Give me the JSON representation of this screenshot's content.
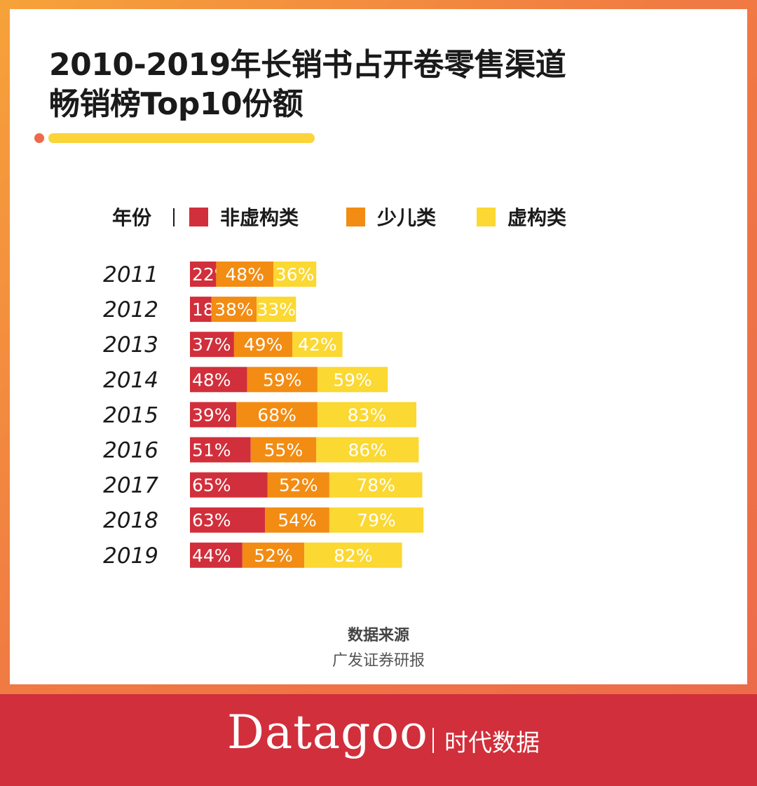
{
  "title": {
    "line1": "2010-2019年长销书占开卷零售渠道",
    "line2": "畅销榜Top10份额"
  },
  "legend": {
    "year_label": "年份",
    "items": [
      {
        "label": "非虚构类",
        "color": "#d12f3b"
      },
      {
        "label": "少儿类",
        "color": "#f28c13"
      },
      {
        "label": "虚构类",
        "color": "#fbd832"
      }
    ]
  },
  "chart_data": {
    "type": "bar",
    "orientation": "horizontal",
    "stacked": true,
    "categories": [
      "2011",
      "2012",
      "2013",
      "2014",
      "2015",
      "2016",
      "2017",
      "2018",
      "2019"
    ],
    "series": [
      {
        "name": "非虚构类",
        "color": "#d12f3b",
        "values": [
          22,
          18,
          37,
          48,
          39,
          51,
          65,
          63,
          44
        ]
      },
      {
        "name": "少儿类",
        "color": "#f28c13",
        "values": [
          48,
          38,
          49,
          59,
          68,
          55,
          52,
          54,
          52
        ]
      },
      {
        "name": "虚构类",
        "color": "#fbd832",
        "values": [
          36,
          33,
          42,
          59,
          83,
          86,
          78,
          79,
          82
        ]
      }
    ],
    "value_suffix": "%",
    "xlim": [
      0,
      200
    ],
    "grid": false,
    "legend_position": "top"
  },
  "source": {
    "label": "数据来源",
    "text": "广发证券研报"
  },
  "brand": {
    "name": "Datagoo",
    "cn": "时代数据"
  }
}
